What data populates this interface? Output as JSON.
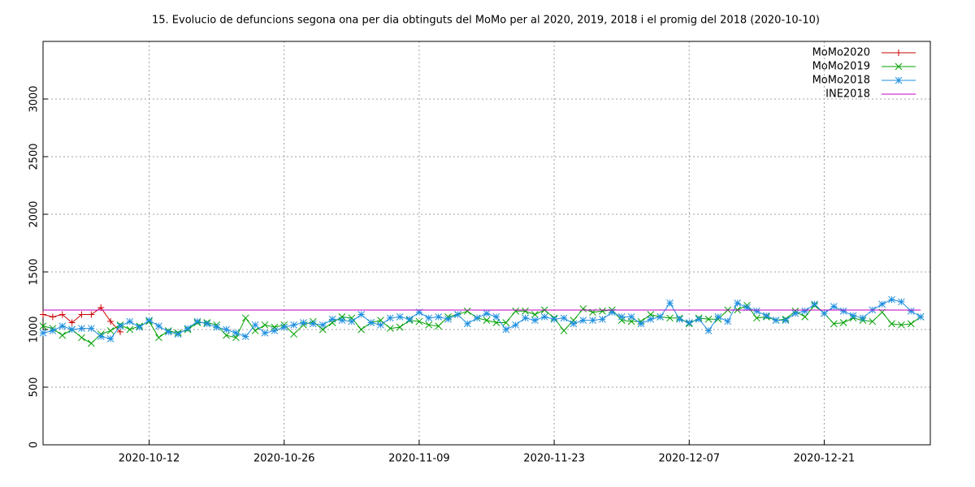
{
  "chart_data": {
    "type": "line",
    "title": "15. Evolucio de defuncions segona ona per dia obtinguts del MoMo per al 2020, 2019, 2018 i el promig del 2018 (2020-10-10)",
    "x": [
      "2020-10-01",
      "2020-10-02",
      "2020-10-03",
      "2020-10-04",
      "2020-10-05",
      "2020-10-06",
      "2020-10-07",
      "2020-10-08",
      "2020-10-09",
      "2020-10-10",
      "2020-10-11",
      "2020-10-12",
      "2020-10-13",
      "2020-10-14",
      "2020-10-15",
      "2020-10-16",
      "2020-10-17",
      "2020-10-18",
      "2020-10-19",
      "2020-10-20",
      "2020-10-21",
      "2020-10-22",
      "2020-10-23",
      "2020-10-24",
      "2020-10-25",
      "2020-10-26",
      "2020-10-27",
      "2020-10-28",
      "2020-10-29",
      "2020-10-30",
      "2020-10-31",
      "2020-11-01",
      "2020-11-02",
      "2020-11-03",
      "2020-11-04",
      "2020-11-05",
      "2020-11-06",
      "2020-11-07",
      "2020-11-08",
      "2020-11-09",
      "2020-11-10",
      "2020-11-11",
      "2020-11-12",
      "2020-11-13",
      "2020-11-14",
      "2020-11-15",
      "2020-11-16",
      "2020-11-17",
      "2020-11-18",
      "2020-11-19",
      "2020-11-20",
      "2020-11-21",
      "2020-11-22",
      "2020-11-23",
      "2020-11-24",
      "2020-11-25",
      "2020-11-26",
      "2020-11-27",
      "2020-11-28",
      "2020-11-29",
      "2020-11-30",
      "2020-12-01",
      "2020-12-02",
      "2020-12-03",
      "2020-12-04",
      "2020-12-05",
      "2020-12-06",
      "2020-12-07",
      "2020-12-08",
      "2020-12-09",
      "2020-12-10",
      "2020-12-11",
      "2020-12-12",
      "2020-12-13",
      "2020-12-14",
      "2020-12-15",
      "2020-12-16",
      "2020-12-17",
      "2020-12-18",
      "2020-12-19",
      "2020-12-20",
      "2020-12-21",
      "2020-12-22",
      "2020-12-23",
      "2020-12-24",
      "2020-12-25",
      "2020-12-26",
      "2020-12-27",
      "2020-12-28",
      "2020-12-29",
      "2020-12-30",
      "2020-12-31"
    ],
    "series": [
      {
        "name": "MoMo2020",
        "color": "#cc0000",
        "marker": "plus",
        "values": [
          1130,
          1110,
          1130,
          1060,
          1130,
          1130,
          1190,
          1070,
          980,
          null,
          null,
          null,
          null,
          null,
          null,
          null,
          null,
          null,
          null,
          null,
          null,
          null,
          null,
          null,
          null,
          null,
          null,
          null,
          null,
          null,
          null,
          null,
          null,
          null,
          null,
          null,
          null,
          null,
          null,
          null,
          null,
          null,
          null,
          null,
          null,
          null,
          null,
          null,
          null,
          null,
          null,
          null,
          null,
          null,
          null,
          null,
          null,
          null,
          null,
          null,
          null,
          null,
          null,
          null,
          null,
          null,
          null,
          null,
          null,
          null,
          null,
          null,
          null,
          null,
          null,
          null,
          null,
          null,
          null,
          null,
          null,
          null,
          null,
          null,
          null,
          null,
          null,
          null,
          null,
          null,
          null,
          null
        ]
      },
      {
        "name": "MoMo2019",
        "color": "#00a000",
        "marker": "cross",
        "values": [
          1030,
          1010,
          950,
          1000,
          930,
          880,
          960,
          990,
          1040,
          1000,
          1030,
          1070,
          930,
          990,
          970,
          1000,
          1060,
          1060,
          1040,
          950,
          930,
          1100,
          990,
          1040,
          1020,
          1040,
          960,
          1040,
          1070,
          1000,
          1060,
          1110,
          1100,
          1000,
          1060,
          1080,
          1010,
          1020,
          1080,
          1070,
          1040,
          1030,
          1110,
          1130,
          1160,
          1100,
          1080,
          1060,
          1060,
          1160,
          1160,
          1130,
          1170,
          1100,
          990,
          1080,
          1180,
          1150,
          1160,
          1170,
          1080,
          1070,
          1070,
          1130,
          1110,
          1100,
          1100,
          1050,
          1100,
          1090,
          1090,
          1170,
          1170,
          1210,
          1100,
          1110,
          1080,
          1090,
          1160,
          1110,
          1210,
          1140,
          1050,
          1060,
          1100,
          1080,
          1070,
          1150,
          1050,
          1040,
          1050,
          1110
        ]
      },
      {
        "name": "MoMo2018",
        "color": "#1f8fdf",
        "marker": "star",
        "values": [
          970,
          990,
          1030,
          1000,
          1010,
          1010,
          940,
          920,
          1030,
          1070,
          1020,
          1080,
          1030,
          980,
          960,
          1010,
          1070,
          1050,
          1020,
          1000,
          970,
          940,
          1040,
          970,
          990,
          1020,
          1040,
          1060,
          1050,
          1040,
          1090,
          1080,
          1070,
          1130,
          1060,
          1040,
          1100,
          1110,
          1090,
          1150,
          1100,
          1110,
          1090,
          1130,
          1050,
          1100,
          1140,
          1110,
          1000,
          1040,
          1100,
          1080,
          1110,
          1090,
          1100,
          1050,
          1080,
          1080,
          1090,
          1150,
          1110,
          1110,
          1050,
          1090,
          1110,
          1230,
          1090,
          1060,
          1090,
          990,
          1110,
          1070,
          1230,
          1190,
          1160,
          1120,
          1080,
          1080,
          1140,
          1160,
          1220,
          1140,
          1200,
          1160,
          1120,
          1100,
          1170,
          1220,
          1260,
          1240,
          1160,
          1110
        ]
      },
      {
        "name": "INE2018",
        "color": "#c000c0",
        "marker": "none",
        "values": [
          1169,
          1169,
          1169,
          1169,
          1169,
          1169,
          1169,
          1169,
          1169,
          1169,
          1169,
          1169,
          1169,
          1169,
          1169,
          1169,
          1169,
          1169,
          1169,
          1169,
          1169,
          1169,
          1169,
          1169,
          1169,
          1169,
          1169,
          1169,
          1169,
          1169,
          1169,
          1169,
          1169,
          1169,
          1169,
          1169,
          1169,
          1169,
          1169,
          1169,
          1169,
          1169,
          1169,
          1169,
          1169,
          1169,
          1169,
          1169,
          1169,
          1169,
          1169,
          1169,
          1169,
          1169,
          1169,
          1169,
          1169,
          1169,
          1169,
          1169,
          1169,
          1169,
          1169,
          1169,
          1169,
          1169,
          1169,
          1169,
          1169,
          1169,
          1169,
          1169,
          1169,
          1169,
          1169,
          1169,
          1169,
          1169,
          1169,
          1169,
          1169,
          1169,
          1169,
          1169,
          1169,
          1169,
          1169,
          1169,
          1169,
          1169,
          1169,
          1169
        ]
      }
    ],
    "xlim": [
      "2020-10-01",
      "2021-01-01"
    ],
    "xticks": [
      "2020-10-12",
      "2020-10-26",
      "2020-11-09",
      "2020-11-23",
      "2020-12-07",
      "2020-12-21"
    ],
    "ylim": [
      0,
      3500
    ],
    "yticks": [
      0,
      500,
      1000,
      1500,
      2000,
      2500,
      3000
    ],
    "grid": true,
    "legend": "top-right"
  }
}
